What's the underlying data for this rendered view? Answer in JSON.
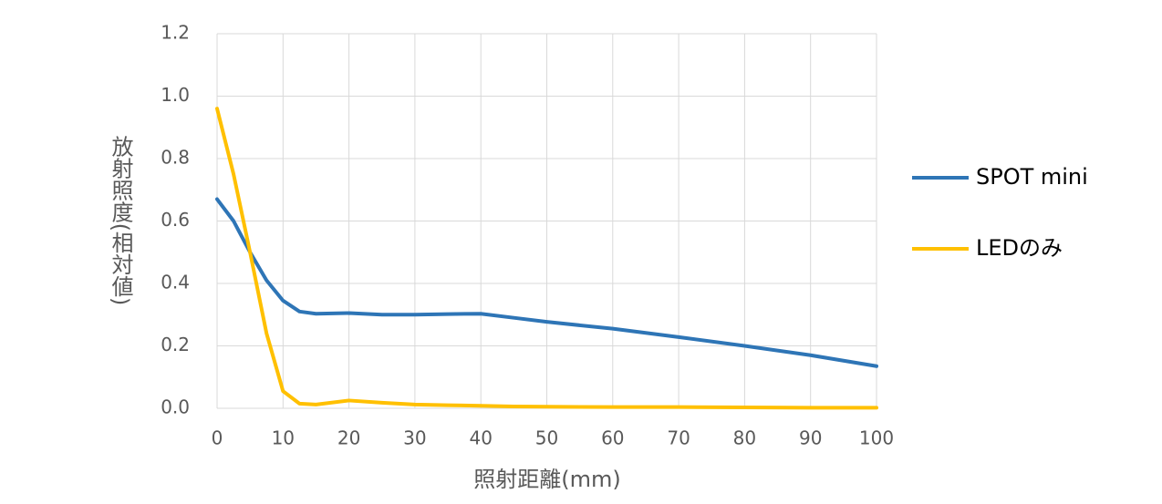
{
  "chart_data": {
    "type": "line",
    "x_label": "照射距離(mm)",
    "y_label": "放射照度(相対値)",
    "x": [
      0,
      2.5,
      5,
      7.5,
      10,
      12.5,
      15,
      20,
      25,
      30,
      35,
      40,
      45,
      50,
      60,
      70,
      80,
      90,
      100
    ],
    "series": [
      {
        "name": "SPOT mini",
        "color": "#2e75b6",
        "values": [
          0.67,
          0.6,
          0.5,
          0.41,
          0.345,
          0.31,
          0.303,
          0.305,
          0.3,
          0.3,
          0.302,
          0.303,
          0.29,
          0.277,
          0.255,
          0.228,
          0.2,
          0.17,
          0.135
        ]
      },
      {
        "name": "LEDのみ",
        "color": "#ffc000",
        "values": [
          0.96,
          0.75,
          0.5,
          0.24,
          0.055,
          0.015,
          0.012,
          0.025,
          0.018,
          0.012,
          0.01,
          0.008,
          0.006,
          0.005,
          0.004,
          0.004,
          0.003,
          0.002,
          0.002
        ]
      }
    ],
    "xlim": [
      0,
      100
    ],
    "xticks": [
      0,
      10,
      20,
      30,
      40,
      50,
      60,
      70,
      80,
      90,
      100
    ],
    "ylim": [
      0,
      1.2
    ],
    "yticks": [
      {
        "value": 0,
        "label": "0.0"
      },
      0.2,
      0.4,
      0.6,
      0.8,
      {
        "value": 1,
        "label": "1.0"
      },
      1.2
    ],
    "grid": true,
    "legend": "right"
  }
}
